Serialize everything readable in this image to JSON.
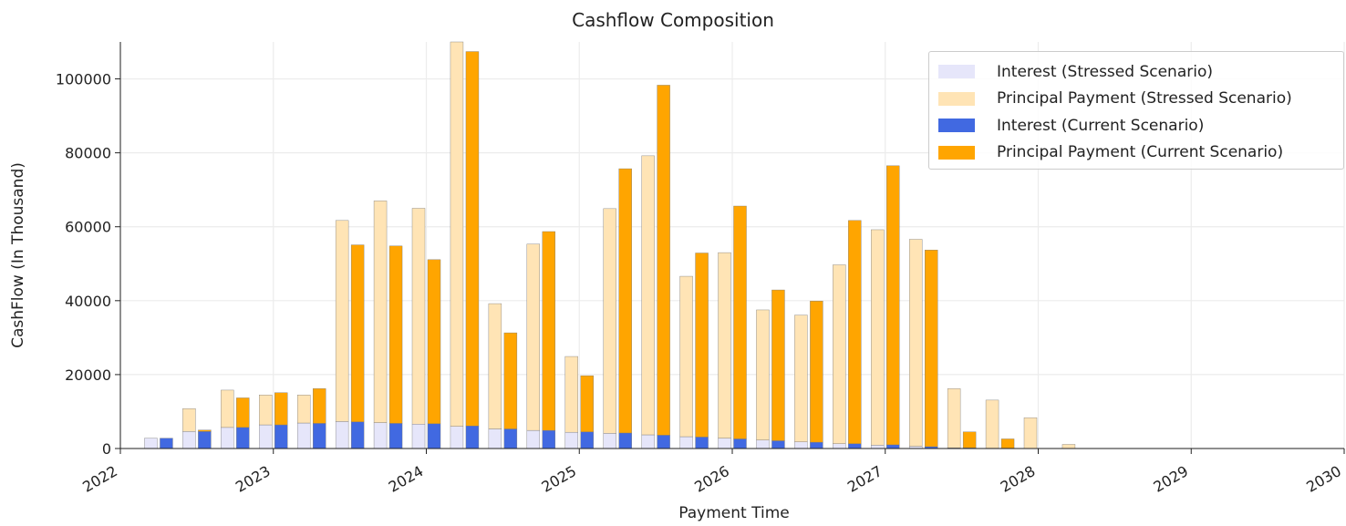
{
  "chart_data": {
    "type": "bar",
    "stacked": true,
    "title": "Cashflow Composition",
    "xlabel": "Payment Time",
    "ylabel": "CashFlow (In Thousand)",
    "xlim": [
      2022,
      2030
    ],
    "ylim": [
      0,
      110000
    ],
    "x_ticks": [
      "2022",
      "2023",
      "2024",
      "2025",
      "2026",
      "2027",
      "2028",
      "2029",
      "2030"
    ],
    "y_ticks": [
      "0",
      "20000",
      "40000",
      "60000",
      "80000",
      "100000"
    ],
    "grid": true,
    "legend_position": "top-right",
    "x": [
      "2022-04",
      "2022-07",
      "2022-10",
      "2023-01",
      "2023-04",
      "2023-07",
      "2023-10",
      "2024-01",
      "2024-04",
      "2024-07",
      "2024-10",
      "2025-01",
      "2025-04",
      "2025-07",
      "2025-10",
      "2026-01",
      "2026-04",
      "2026-07",
      "2026-10",
      "2027-01",
      "2027-04",
      "2027-07",
      "2027-10",
      "2028-01",
      "2028-04"
    ],
    "series": [
      {
        "name": "Interest (Stressed Scenario)",
        "group": "stressed",
        "color": "#e6e6fa",
        "values": [
          2800,
          4600,
          5700,
          6400,
          6900,
          7300,
          7000,
          6600,
          6000,
          5300,
          4900,
          4400,
          4100,
          3700,
          3200,
          2800,
          2300,
          1800,
          1300,
          900,
          600,
          200,
          100,
          50,
          20
        ]
      },
      {
        "name": "Principal Payment (Stressed Scenario)",
        "group": "stressed",
        "color": "#ffe4b5",
        "values": [
          0,
          6200,
          10100,
          8100,
          7600,
          54400,
          60000,
          58400,
          104000,
          33900,
          50400,
          20500,
          60800,
          75500,
          43400,
          50200,
          35200,
          34300,
          48400,
          58300,
          56000,
          16000,
          13000,
          8300,
          1100
        ]
      },
      {
        "name": "Interest (Current Scenario)",
        "group": "current",
        "color": "#4169e1",
        "values": [
          2800,
          4600,
          5700,
          6400,
          6800,
          7200,
          6800,
          6700,
          6100,
          5300,
          4900,
          4500,
          4200,
          3600,
          3100,
          2600,
          2100,
          1700,
          1300,
          1000,
          500,
          200,
          100,
          0,
          0
        ]
      },
      {
        "name": "Principal Payment (Current Scenario)",
        "group": "current",
        "color": "#ffa500",
        "values": [
          0,
          400,
          8000,
          8700,
          9400,
          47900,
          48000,
          44400,
          101300,
          26000,
          53800,
          15200,
          71500,
          94700,
          49800,
          63000,
          40800,
          38200,
          60400,
          75500,
          53200,
          4300,
          2500,
          0,
          0
        ]
      }
    ]
  }
}
